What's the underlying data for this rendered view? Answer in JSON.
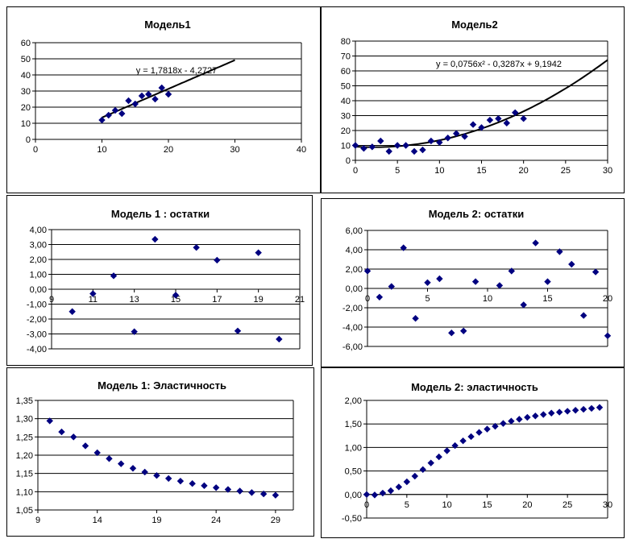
{
  "chart_data": [
    {
      "type": "scatter",
      "title": "Модель1",
      "xlim": [
        0,
        40
      ],
      "ylim": [
        0,
        60
      ],
      "xticks": [
        "0",
        "10",
        "20",
        "30",
        "40"
      ],
      "yticks": [
        "0",
        "10",
        "20",
        "30",
        "40",
        "50",
        "60"
      ],
      "grid": "horizontal",
      "marker_color": "#000080",
      "points": [
        [
          10,
          12
        ],
        [
          11,
          15
        ],
        [
          12,
          18
        ],
        [
          13,
          16
        ],
        [
          14,
          24
        ],
        [
          15,
          22
        ],
        [
          16,
          27
        ],
        [
          17,
          28
        ],
        [
          18,
          25
        ],
        [
          19,
          32
        ],
        [
          20,
          28
        ]
      ],
      "trendline": {
        "kind": "linear",
        "coef": [
          1.7818,
          -4.2727
        ],
        "x_range": [
          10,
          30
        ],
        "equation": "y = 1,7818x - 4,2727"
      }
    },
    {
      "type": "scatter",
      "title": "Модель2",
      "xlim": [
        0,
        30
      ],
      "ylim": [
        0,
        80
      ],
      "xticks": [
        "0",
        "5",
        "10",
        "15",
        "20",
        "25",
        "30"
      ],
      "yticks": [
        "0",
        "10",
        "20",
        "30",
        "40",
        "50",
        "60",
        "70",
        "80"
      ],
      "grid": "horizontal",
      "marker_color": "#000080",
      "points": [
        [
          0,
          10
        ],
        [
          1,
          8
        ],
        [
          2,
          9
        ],
        [
          3,
          13
        ],
        [
          4,
          6
        ],
        [
          5,
          10
        ],
        [
          6,
          10
        ],
        [
          7,
          6
        ],
        [
          8,
          7
        ],
        [
          9,
          13
        ],
        [
          10,
          12
        ],
        [
          11,
          15
        ],
        [
          12,
          18
        ],
        [
          13,
          16
        ],
        [
          14,
          24
        ],
        [
          15,
          22
        ],
        [
          16,
          27
        ],
        [
          17,
          28
        ],
        [
          18,
          25
        ],
        [
          19,
          32
        ],
        [
          20,
          28
        ]
      ],
      "trendline": {
        "kind": "poly2",
        "coef": [
          0.0756,
          -0.3287,
          9.1942
        ],
        "x_range": [
          0,
          30
        ],
        "equation": "y = 0,0756x² - 0,3287x + 9,1942"
      }
    },
    {
      "type": "scatter",
      "title": "Модель 1 : остатки",
      "xlim": [
        9,
        21
      ],
      "ylim": [
        -4,
        4
      ],
      "xticks": [
        "9",
        "11",
        "13",
        "15",
        "17",
        "19",
        "21"
      ],
      "yticks": [
        "-4,00",
        "-3,00",
        "-2,00",
        "-1,00",
        "0,00",
        "1,00",
        "2,00",
        "3,00",
        "4,00"
      ],
      "grid": "horizontal",
      "marker_color": "#000080",
      "points": [
        [
          10,
          -1.5
        ],
        [
          11,
          -0.3
        ],
        [
          12,
          0.9
        ],
        [
          13,
          -2.85
        ],
        [
          14,
          3.35
        ],
        [
          15,
          -0.4
        ],
        [
          16,
          2.8
        ],
        [
          17,
          1.95
        ],
        [
          18,
          -2.8
        ],
        [
          19,
          2.45
        ],
        [
          20,
          -3.35
        ]
      ]
    },
    {
      "type": "scatter",
      "title": "Модель 2: остатки",
      "xlim": [
        0,
        20
      ],
      "ylim": [
        -6,
        6
      ],
      "xticks": [
        "0",
        "5",
        "10",
        "15",
        "20"
      ],
      "yticks": [
        "-6,00",
        "-4,00",
        "-2,00",
        "0,00",
        "2,00",
        "4,00",
        "6,00"
      ],
      "grid": "horizontal",
      "marker_color": "#000080",
      "points": [
        [
          0,
          1.8
        ],
        [
          1,
          -0.9
        ],
        [
          2,
          0.2
        ],
        [
          3,
          4.2
        ],
        [
          4,
          -3.1
        ],
        [
          5,
          0.6
        ],
        [
          6,
          1.0
        ],
        [
          7,
          -4.6
        ],
        [
          8,
          -4.4
        ],
        [
          9,
          0.7
        ],
        [
          11,
          0.3
        ],
        [
          12,
          1.8
        ],
        [
          13,
          -1.7
        ],
        [
          14,
          4.7
        ],
        [
          15,
          0.7
        ],
        [
          16,
          3.8
        ],
        [
          17,
          2.5
        ],
        [
          18,
          -2.8
        ],
        [
          19,
          1.7
        ],
        [
          20,
          -4.9
        ]
      ]
    },
    {
      "type": "scatter",
      "title": "Модель 1: Эластичность",
      "xlim": [
        9,
        30.5
      ],
      "ylim": [
        1.05,
        1.35
      ],
      "xticks": [
        "9",
        "14",
        "19",
        "24",
        "29"
      ],
      "xtick_values": [
        9,
        14,
        19,
        24,
        29
      ],
      "yticks": [
        "1,05",
        "1,10",
        "1,15",
        "1,20",
        "1,25",
        "1,30",
        "1,35"
      ],
      "grid": "horizontal",
      "marker_color": "#000080",
      "points": [
        [
          10,
          1.2939
        ],
        [
          11,
          1.2638
        ],
        [
          12,
          1.2499
        ],
        [
          13,
          1.2256
        ],
        [
          14,
          1.2067
        ],
        [
          15,
          1.1905
        ],
        [
          16,
          1.1765
        ],
        [
          17,
          1.1641
        ],
        [
          18,
          1.1538
        ],
        [
          19,
          1.1444
        ],
        [
          20,
          1.1362
        ],
        [
          21,
          1.129
        ],
        [
          22,
          1.1223
        ],
        [
          23,
          1.1165
        ],
        [
          24,
          1.1111
        ],
        [
          25,
          1.1062
        ],
        [
          26,
          1.1018
        ],
        [
          27,
          1.0977
        ],
        [
          28,
          1.0939
        ],
        [
          29,
          1.0904
        ]
      ]
    },
    {
      "type": "scatter",
      "title": "Модель 2: эластичность",
      "xlim": [
        0,
        30
      ],
      "ylim": [
        -0.5,
        2
      ],
      "xticks": [
        "0",
        "5",
        "10",
        "15",
        "20",
        "25",
        "30"
      ],
      "yticks": [
        "-0,50",
        "0,00",
        "0,50",
        "1,00",
        "1,50",
        "2,00"
      ],
      "grid": "horizontal",
      "marker_color": "#000080",
      "points": [
        [
          0,
          0
        ],
        [
          1,
          -0.01
        ],
        [
          2,
          0.03
        ],
        [
          3,
          0.08
        ],
        [
          4,
          0.16
        ],
        [
          5,
          0.27
        ],
        [
          6,
          0.39
        ],
        [
          7,
          0.53
        ],
        [
          8,
          0.67
        ],
        [
          9,
          0.8
        ],
        [
          10,
          0.93
        ],
        [
          11,
          1.04
        ],
        [
          12,
          1.14
        ],
        [
          13,
          1.23
        ],
        [
          14,
          1.32
        ],
        [
          15,
          1.39
        ],
        [
          16,
          1.45
        ],
        [
          17,
          1.51
        ],
        [
          18,
          1.56
        ],
        [
          19,
          1.6
        ],
        [
          20,
          1.64
        ],
        [
          21,
          1.67
        ],
        [
          22,
          1.7
        ],
        [
          23,
          1.73
        ],
        [
          24,
          1.75
        ],
        [
          25,
          1.77
        ],
        [
          26,
          1.79
        ],
        [
          27,
          1.81
        ],
        [
          28,
          1.83
        ],
        [
          29,
          1.85
        ]
      ]
    }
  ]
}
